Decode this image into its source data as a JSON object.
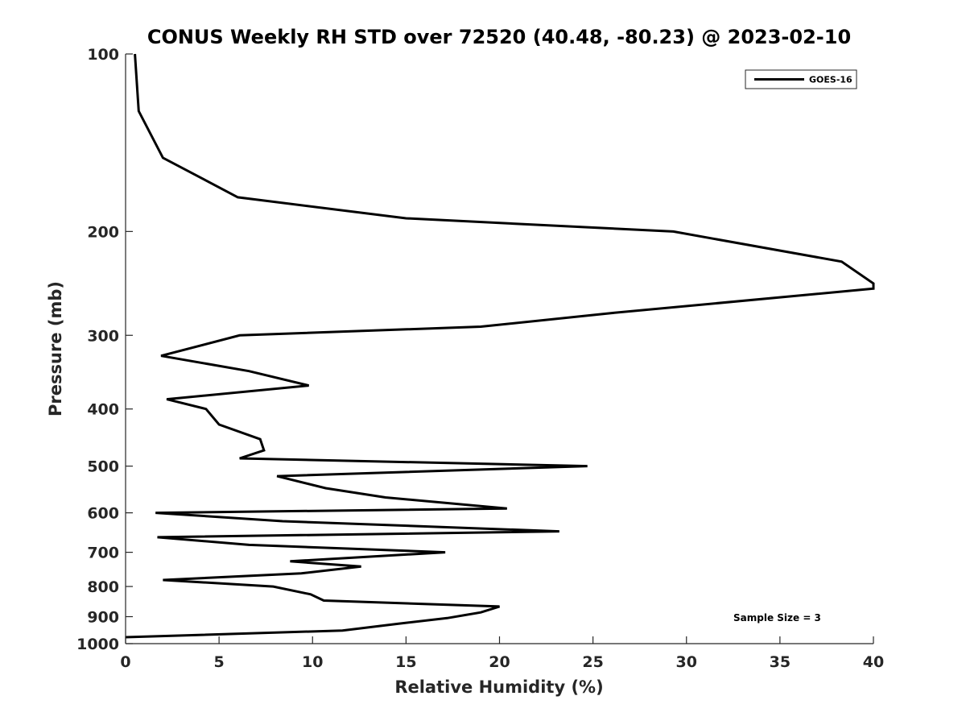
{
  "chart_data": {
    "type": "line",
    "title": "CONUS Weekly RH STD over 72520 (40.48, -80.23) @ 2023-02-10",
    "xlabel": "Relative Humidity (%)",
    "ylabel": "Pressure (mb)",
    "xlim": [
      0,
      40
    ],
    "ylim": [
      100,
      1000
    ],
    "yscale": "log",
    "y_reversed": true,
    "x_ticks": [
      0,
      5,
      10,
      15,
      20,
      25,
      30,
      35,
      40
    ],
    "x_tick_labels": [
      "0",
      "5",
      "10",
      "15",
      "20",
      "25",
      "30",
      "35",
      "40"
    ],
    "y_ticks": [
      100,
      200,
      300,
      400,
      500,
      600,
      700,
      800,
      900,
      1000
    ],
    "y_tick_labels": [
      "100",
      "200",
      "300",
      "400",
      "500",
      "600",
      "700",
      "800",
      "900",
      "1000"
    ],
    "grid": false,
    "legend_position": "top-right",
    "annotation": "Sample Size = 3",
    "series": [
      {
        "name": "GOES-16",
        "color": "#000000",
        "x": [
          0.5,
          0.7,
          2.0,
          6.0,
          15.0,
          29.3,
          38.3,
          40.0,
          40.0,
          26.0,
          19.0,
          6.1,
          1.9,
          6.6,
          9.8,
          2.2,
          4.3,
          5.0,
          7.2,
          7.4,
          6.1,
          24.7,
          8.1,
          10.7,
          13.9,
          20.4,
          1.6,
          8.4,
          23.2,
          1.7,
          6.6,
          17.1,
          8.8,
          12.6,
          9.4,
          2.0,
          7.9,
          9.9,
          10.6,
          20.0,
          19.0,
          17.2,
          14.6,
          11.6,
          0.0
        ],
        "y": [
          100,
          125,
          150,
          175,
          190,
          200,
          225,
          245,
          250,
          275,
          290,
          300,
          325,
          345,
          365,
          385,
          400,
          425,
          450,
          470,
          485,
          500,
          520,
          545,
          565,
          590,
          600,
          620,
          645,
          660,
          680,
          700,
          725,
          740,
          760,
          780,
          800,
          825,
          845,
          865,
          885,
          905,
          925,
          950,
          975
        ]
      }
    ]
  }
}
